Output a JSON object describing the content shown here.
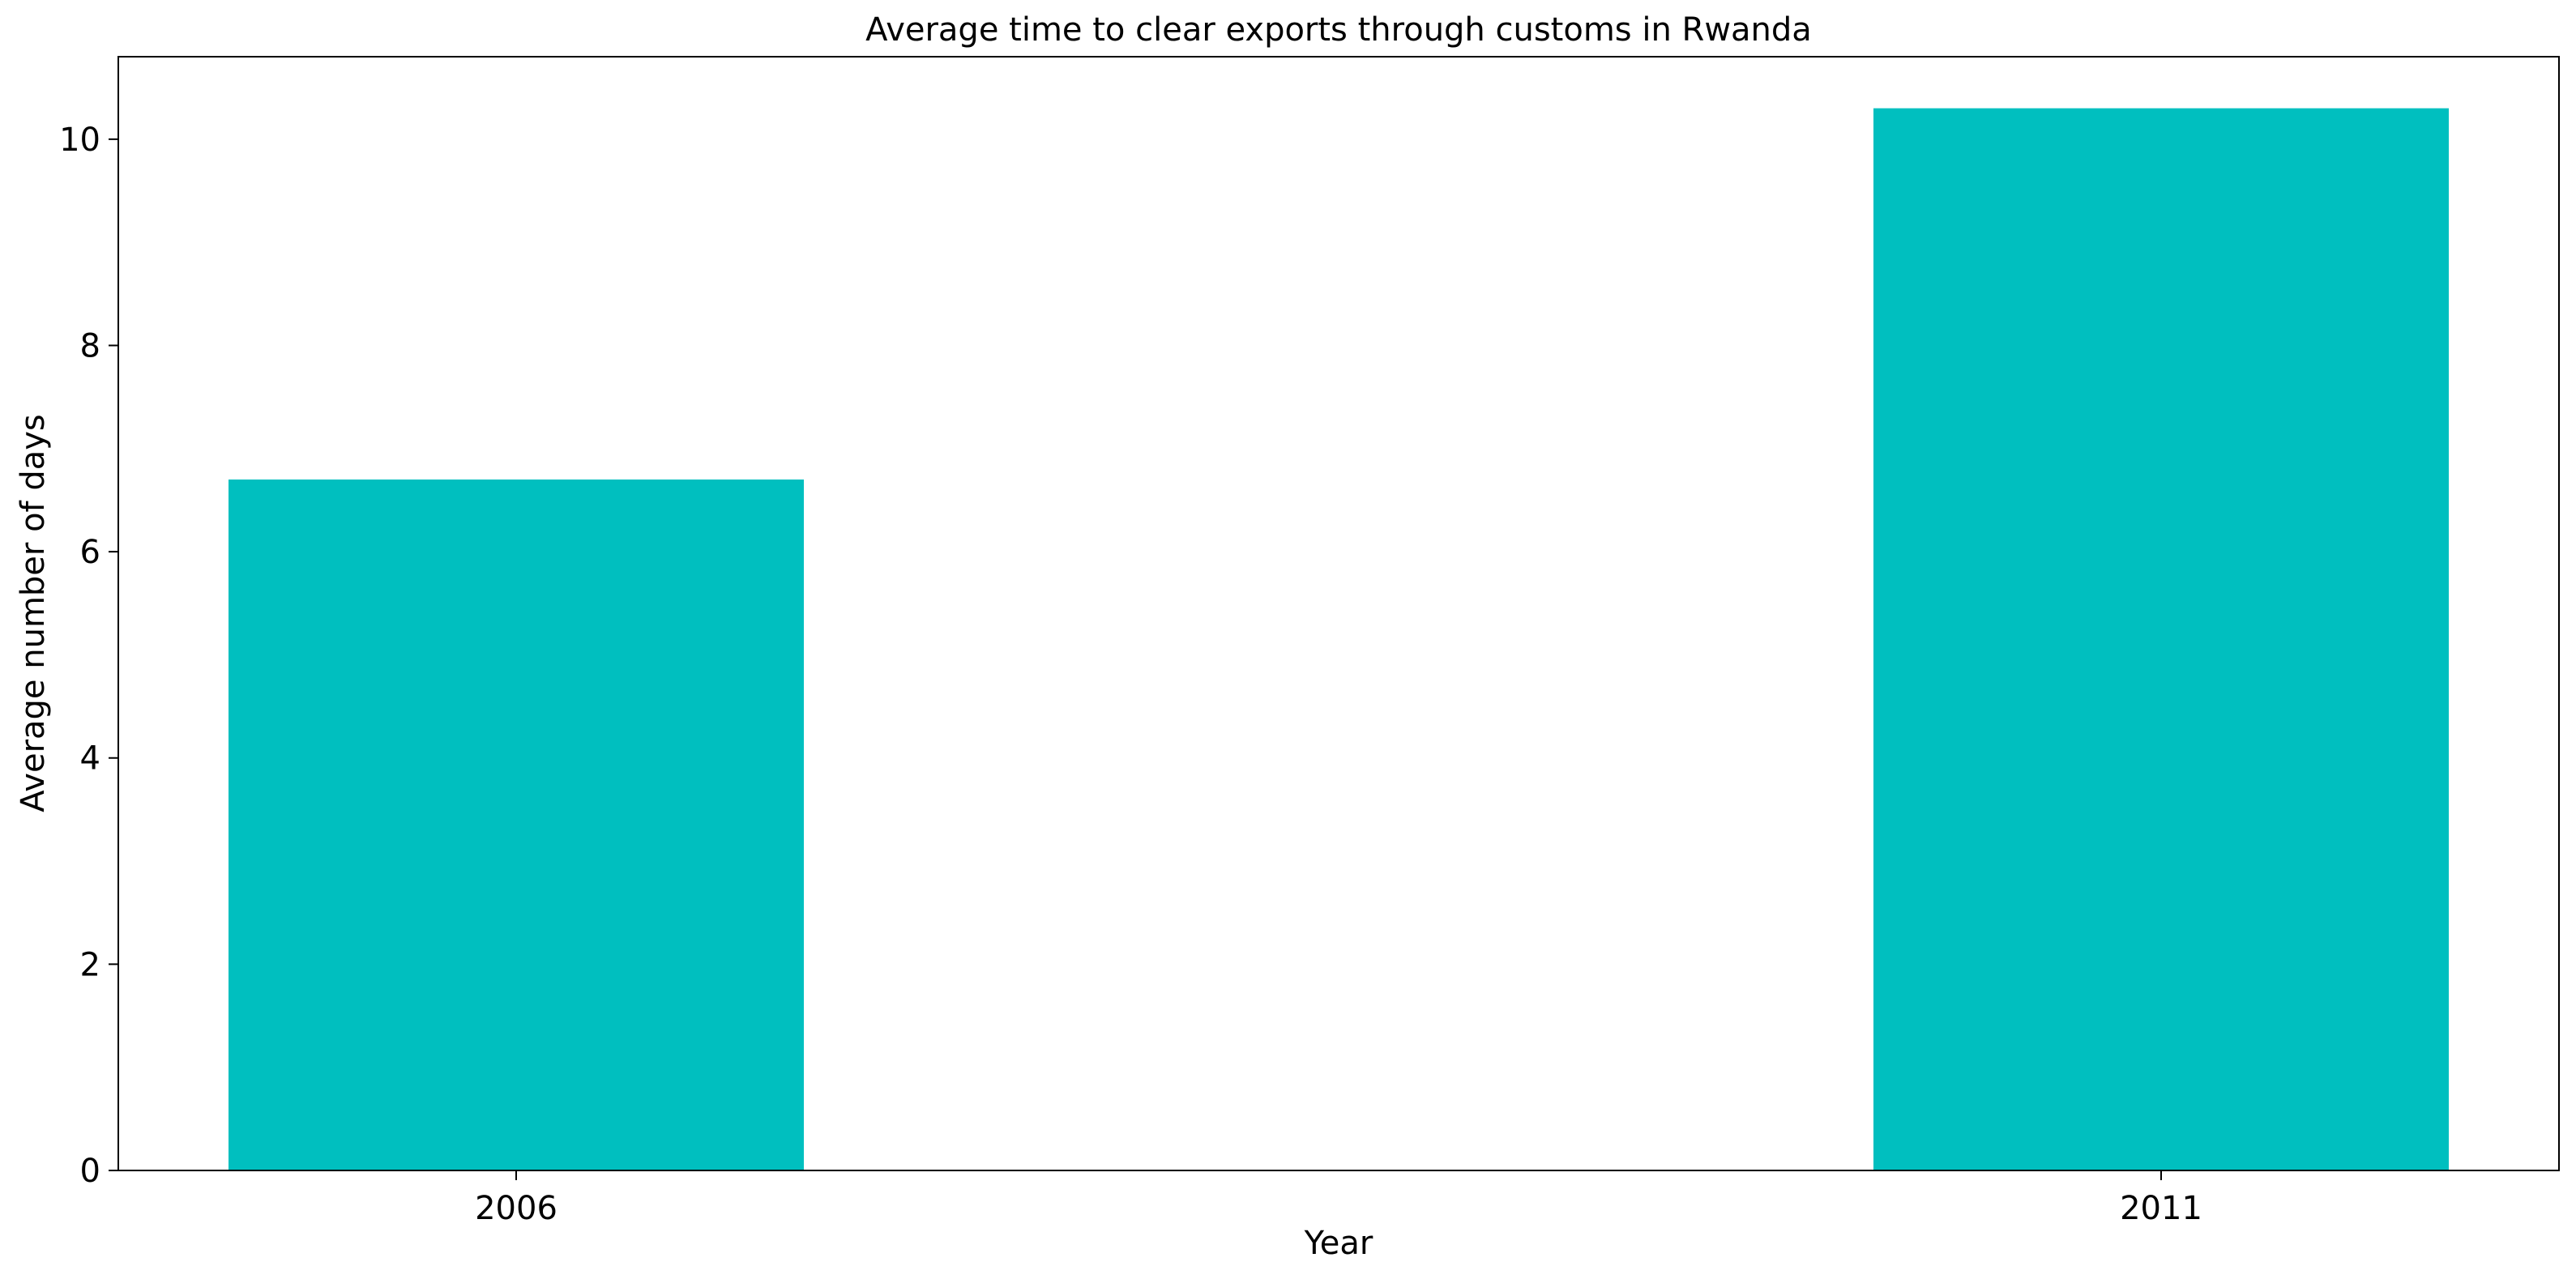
{
  "chart_data": {
    "type": "bar",
    "title": "Average time to clear exports through customs in Rwanda",
    "xlabel": "Year",
    "ylabel": "Average number of days",
    "categories": [
      "2006",
      "2011"
    ],
    "values": [
      6.7,
      10.3
    ],
    "ylim": [
      0,
      10.8
    ],
    "yticks": [
      0,
      2,
      4,
      6,
      8,
      10
    ],
    "grid": false,
    "legend": "none",
    "bar_color": "#00bfbf"
  }
}
